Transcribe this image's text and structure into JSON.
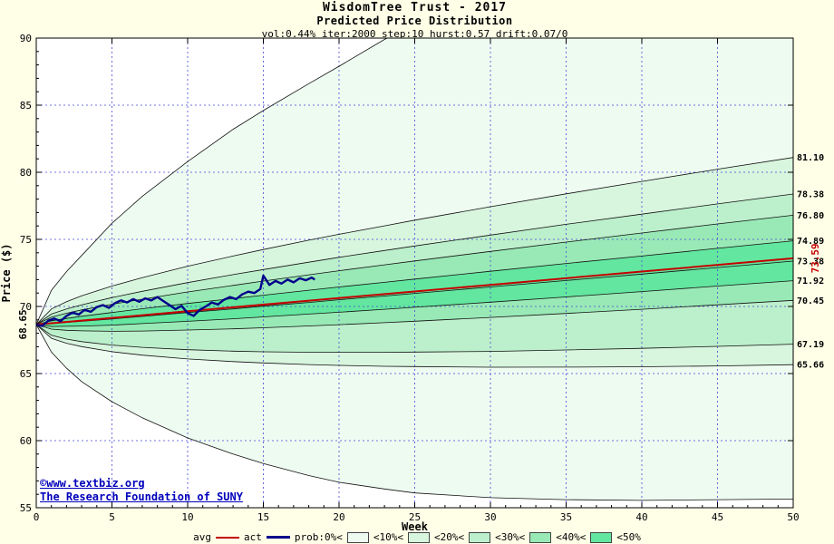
{
  "header": {
    "title": "WisdomTree Trust - 2017",
    "subtitle": "Predicted Price Distribution",
    "params": "vol:0.44% iter:2000 step:10 hurst:0.57 drift:0.07/0"
  },
  "watermark": {
    "line1": "©www.textbiz.org",
    "line2": "The Research Foundation of SUNY"
  },
  "plot": {
    "x_label": "Week",
    "y_label": "Price ($)",
    "x_ticks": [
      0,
      5,
      10,
      15,
      20,
      25,
      30,
      35,
      40,
      45,
      50
    ],
    "y_ticks": [
      55,
      60,
      65,
      70,
      75,
      80,
      85,
      90
    ]
  },
  "colors": {
    "background": "#ffffe8",
    "plot_bg": "#ffffff",
    "grid": "#4646d8",
    "border": "#000000",
    "boundary_line": "#111111",
    "avg": "#c40000",
    "actual": "#00008b",
    "watermark": "#0000bb",
    "bands": [
      "#eefbf1",
      "#d8f5de",
      "#bcefcb",
      "#99e9b6",
      "#63e69f"
    ]
  },
  "legend": {
    "items": [
      {
        "label": "avg",
        "marker": "line",
        "color": "#c40000",
        "thickness": 2
      },
      {
        "label": "act",
        "marker": "line",
        "color": "#00008b",
        "thickness": 3
      },
      {
        "label": "prob:0%<",
        "marker": "box",
        "color": "#eefbf1"
      },
      {
        "label": "<10%<",
        "marker": "box",
        "color": "#d8f5de"
      },
      {
        "label": "<20%<",
        "marker": "box",
        "color": "#bcefcb"
      },
      {
        "label": "<30%<",
        "marker": "box",
        "color": "#99e9b6"
      },
      {
        "label": "<40%<",
        "marker": "box",
        "color": "#63e69f"
      },
      {
        "label": "<50%",
        "marker": null
      }
    ]
  },
  "chart_data": {
    "type": "area",
    "title": "WisdomTree Trust - 2017",
    "subtitle": "Predicted Price Distribution",
    "params": "vol:0.44% iter:2000 step:10 hurst:0.57 drift:0.07/0",
    "xlabel": "Week",
    "ylabel": "Price ($)",
    "xlim": [
      0,
      50
    ],
    "ylim": [
      55,
      90
    ],
    "grid": true,
    "legend_position": "bottom",
    "start": {
      "week": 0,
      "price": 68.65,
      "label": "68.65"
    },
    "avg_series": {
      "name": "avg",
      "end_label": "73.59",
      "points": [
        [
          0,
          68.65
        ],
        [
          10,
          69.64
        ],
        [
          20,
          70.63
        ],
        [
          30,
          71.61
        ],
        [
          40,
          72.6
        ],
        [
          50,
          73.59
        ]
      ]
    },
    "actual_series": {
      "name": "act",
      "points": [
        [
          0,
          68.65
        ],
        [
          0.4,
          68.55
        ],
        [
          0.8,
          68.95
        ],
        [
          1.2,
          69.1
        ],
        [
          1.6,
          68.9
        ],
        [
          2,
          69.3
        ],
        [
          2.4,
          69.55
        ],
        [
          2.8,
          69.4
        ],
        [
          3.2,
          69.75
        ],
        [
          3.6,
          69.6
        ],
        [
          4,
          69.95
        ],
        [
          4.4,
          70.1
        ],
        [
          4.8,
          69.9
        ],
        [
          5.2,
          70.25
        ],
        [
          5.6,
          70.45
        ],
        [
          6,
          70.3
        ],
        [
          6.4,
          70.55
        ],
        [
          6.8,
          70.35
        ],
        [
          7.2,
          70.6
        ],
        [
          7.6,
          70.45
        ],
        [
          8,
          70.7
        ],
        [
          8.4,
          70.4
        ],
        [
          8.8,
          70.1
        ],
        [
          9.2,
          69.8
        ],
        [
          9.6,
          70.05
        ],
        [
          10,
          69.5
        ],
        [
          10.4,
          69.3
        ],
        [
          10.8,
          69.75
        ],
        [
          11.2,
          70.0
        ],
        [
          11.6,
          70.3
        ],
        [
          12,
          70.15
        ],
        [
          12.4,
          70.5
        ],
        [
          12.8,
          70.7
        ],
        [
          13.2,
          70.55
        ],
        [
          13.6,
          70.9
        ],
        [
          14,
          71.1
        ],
        [
          14.4,
          71.0
        ],
        [
          14.8,
          71.3
        ],
        [
          15,
          72.3
        ],
        [
          15.4,
          71.6
        ],
        [
          15.8,
          71.9
        ],
        [
          16.2,
          71.7
        ],
        [
          16.6,
          72.0
        ],
        [
          17,
          71.8
        ],
        [
          17.4,
          72.1
        ],
        [
          17.8,
          71.95
        ],
        [
          18.2,
          72.15
        ],
        [
          18.4,
          72.0
        ]
      ]
    },
    "boundaries": [
      {
        "name": "max-envelope",
        "end_label": null,
        "points": [
          [
            0,
            68.65
          ],
          [
            1,
            71.2
          ],
          [
            2,
            72.6
          ],
          [
            3,
            73.8
          ],
          [
            5,
            76.2
          ],
          [
            7,
            78.2
          ],
          [
            10,
            80.8
          ],
          [
            13,
            83.2
          ],
          [
            15,
            84.6
          ],
          [
            18,
            86.6
          ],
          [
            20,
            87.9
          ],
          [
            23,
            89.9
          ],
          [
            25,
            91.0
          ],
          [
            30,
            93.0
          ],
          [
            35,
            94.6
          ],
          [
            40,
            96.0
          ],
          [
            45,
            97.2
          ],
          [
            50,
            98.2
          ]
        ]
      },
      {
        "name": "upper-10pct",
        "end_label": "81.10",
        "points": [
          [
            0,
            68.65
          ],
          [
            1,
            69.81
          ],
          [
            2,
            70.35
          ],
          [
            3,
            70.79
          ],
          [
            5,
            71.52
          ],
          [
            7,
            72.15
          ],
          [
            10,
            73.0
          ],
          [
            13,
            73.76
          ],
          [
            15,
            74.24
          ],
          [
            18,
            74.94
          ],
          [
            20,
            75.38
          ],
          [
            23,
            76.01
          ],
          [
            25,
            76.43
          ],
          [
            30,
            77.43
          ],
          [
            35,
            78.39
          ],
          [
            40,
            79.32
          ],
          [
            45,
            80.23
          ],
          [
            50,
            81.1
          ]
        ]
      },
      {
        "name": "upper-20pct",
        "end_label": "78.38",
        "points": [
          [
            0,
            68.65
          ],
          [
            1,
            69.43
          ],
          [
            2,
            69.81
          ],
          [
            3,
            70.12
          ],
          [
            5,
            70.66
          ],
          [
            7,
            71.13
          ],
          [
            10,
            71.78
          ],
          [
            13,
            72.37
          ],
          [
            15,
            72.75
          ],
          [
            18,
            73.3
          ],
          [
            20,
            73.66
          ],
          [
            23,
            74.17
          ],
          [
            25,
            74.51
          ],
          [
            30,
            75.32
          ],
          [
            35,
            76.12
          ],
          [
            40,
            76.88
          ],
          [
            45,
            77.64
          ],
          [
            50,
            78.38
          ]
        ]
      },
      {
        "name": "upper-30pct",
        "end_label": "76.80",
        "points": [
          [
            0,
            68.65
          ],
          [
            1,
            69.2
          ],
          [
            2,
            69.49
          ],
          [
            3,
            69.74
          ],
          [
            5,
            70.16
          ],
          [
            7,
            70.54
          ],
          [
            10,
            71.08
          ],
          [
            13,
            71.57
          ],
          [
            15,
            71.89
          ],
          [
            18,
            72.36
          ],
          [
            20,
            72.66
          ],
          [
            23,
            73.1
          ],
          [
            25,
            73.39
          ],
          [
            30,
            74.1
          ],
          [
            35,
            74.8
          ],
          [
            40,
            75.47
          ],
          [
            45,
            76.15
          ],
          [
            50,
            76.8
          ]
        ]
      },
      {
        "name": "upper-40pct",
        "end_label": "74.89",
        "points": [
          [
            0,
            68.65
          ],
          [
            1,
            68.93
          ],
          [
            2,
            69.11
          ],
          [
            3,
            69.27
          ],
          [
            5,
            69.55
          ],
          [
            7,
            69.83
          ],
          [
            10,
            70.22
          ],
          [
            13,
            70.59
          ],
          [
            15,
            70.84
          ],
          [
            18,
            71.21
          ],
          [
            20,
            71.45
          ],
          [
            23,
            71.8
          ],
          [
            25,
            72.04
          ],
          [
            30,
            72.62
          ],
          [
            35,
            73.2
          ],
          [
            40,
            73.76
          ],
          [
            45,
            74.33
          ],
          [
            50,
            74.89
          ]
        ]
      },
      {
        "name": "median",
        "end_label": "73.38",
        "points": [
          [
            0,
            68.65
          ],
          [
            1,
            68.72
          ],
          [
            2,
            68.81
          ],
          [
            3,
            68.9
          ],
          [
            5,
            69.07
          ],
          [
            7,
            69.26
          ],
          [
            10,
            69.55
          ],
          [
            13,
            69.82
          ],
          [
            15,
            70.02
          ],
          [
            18,
            70.3
          ],
          [
            20,
            70.5
          ],
          [
            23,
            70.78
          ],
          [
            25,
            70.97
          ],
          [
            30,
            71.45
          ],
          [
            35,
            71.93
          ],
          [
            40,
            72.41
          ],
          [
            45,
            72.9
          ],
          [
            50,
            73.38
          ]
        ]
      },
      {
        "name": "lower-40pct",
        "end_label": "71.92",
        "points": [
          [
            0,
            68.65
          ],
          [
            1,
            68.51
          ],
          [
            2,
            68.52
          ],
          [
            3,
            68.54
          ],
          [
            5,
            68.61
          ],
          [
            7,
            68.72
          ],
          [
            10,
            68.89
          ],
          [
            13,
            69.08
          ],
          [
            15,
            69.22
          ],
          [
            18,
            69.43
          ],
          [
            20,
            69.57
          ],
          [
            23,
            69.79
          ],
          [
            25,
            69.94
          ],
          [
            30,
            70.32
          ],
          [
            35,
            70.71
          ],
          [
            40,
            71.11
          ],
          [
            45,
            71.52
          ],
          [
            50,
            71.92
          ]
        ]
      },
      {
        "name": "lower-30pct",
        "end_label": "70.45",
        "points": [
          [
            0,
            68.65
          ],
          [
            1,
            68.31
          ],
          [
            2,
            68.22
          ],
          [
            3,
            68.18
          ],
          [
            5,
            68.15
          ],
          [
            7,
            68.17
          ],
          [
            10,
            68.24
          ],
          [
            13,
            68.33
          ],
          [
            15,
            68.41
          ],
          [
            18,
            68.55
          ],
          [
            20,
            68.64
          ],
          [
            23,
            68.79
          ],
          [
            25,
            68.9
          ],
          [
            30,
            69.18
          ],
          [
            35,
            69.48
          ],
          [
            40,
            69.79
          ],
          [
            45,
            70.12
          ],
          [
            50,
            70.45
          ]
        ]
      },
      {
        "name": "lower-20pct",
        "end_label": "67.19",
        "points": [
          [
            0,
            68.65
          ],
          [
            1,
            67.85
          ],
          [
            2,
            67.57
          ],
          [
            3,
            67.38
          ],
          [
            5,
            67.12
          ],
          [
            7,
            66.95
          ],
          [
            10,
            66.78
          ],
          [
            13,
            66.67
          ],
          [
            15,
            66.62
          ],
          [
            18,
            66.59
          ],
          [
            20,
            66.58
          ],
          [
            23,
            66.58
          ],
          [
            25,
            66.6
          ],
          [
            30,
            66.65
          ],
          [
            35,
            66.76
          ],
          [
            40,
            66.88
          ],
          [
            45,
            67.03
          ],
          [
            50,
            67.19
          ]
        ]
      },
      {
        "name": "lower-10pct",
        "end_label": "65.66",
        "points": [
          [
            0,
            68.65
          ],
          [
            1,
            67.63
          ],
          [
            2,
            67.26
          ],
          [
            3,
            67.01
          ],
          [
            5,
            66.63
          ],
          [
            7,
            66.37
          ],
          [
            10,
            66.09
          ],
          [
            13,
            65.89
          ],
          [
            15,
            65.79
          ],
          [
            18,
            65.67
          ],
          [
            20,
            65.61
          ],
          [
            23,
            65.54
          ],
          [
            25,
            65.52
          ],
          [
            30,
            65.47
          ],
          [
            35,
            65.48
          ],
          [
            40,
            65.51
          ],
          [
            45,
            65.57
          ],
          [
            50,
            65.66
          ]
        ]
      },
      {
        "name": "min-envelope",
        "end_label": null,
        "points": [
          [
            0,
            68.65
          ],
          [
            1,
            66.6
          ],
          [
            2,
            65.4
          ],
          [
            3,
            64.4
          ],
          [
            5,
            62.9
          ],
          [
            7,
            61.7
          ],
          [
            10,
            60.2
          ],
          [
            13,
            59.0
          ],
          [
            15,
            58.3
          ],
          [
            18,
            57.4
          ],
          [
            20,
            56.9
          ],
          [
            23,
            56.4
          ],
          [
            25,
            56.1
          ],
          [
            30,
            55.75
          ],
          [
            35,
            55.6
          ],
          [
            40,
            55.55
          ],
          [
            45,
            55.6
          ],
          [
            50,
            55.65
          ]
        ]
      }
    ],
    "band_color_indices": [
      0,
      1,
      2,
      3,
      4,
      4,
      3,
      2,
      1,
      0
    ]
  }
}
